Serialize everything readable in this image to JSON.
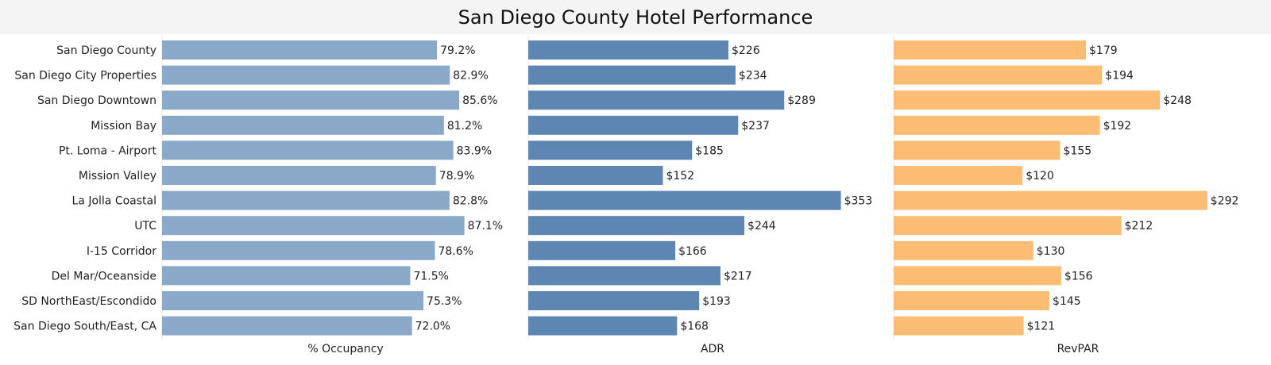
{
  "chart_data": {
    "type": "bar",
    "orientation": "horizontal",
    "title": "San Diego County Hotel Performance",
    "categories": [
      "San Diego County",
      "San Diego City Properties",
      "San Diego Downtown",
      "Mission Bay",
      "Pt. Loma - Airport",
      "Mission Valley",
      "La Jolla Coastal",
      "UTC",
      "I-15 Corridor",
      "Del Mar/Oceanside",
      "SD NorthEast/Escondido",
      "San Diego South/East, CA"
    ],
    "grid": false,
    "series": [
      {
        "name": "% Occupancy",
        "color": "#8aa8c7",
        "format": "percent",
        "values": [
          79.2,
          82.9,
          85.6,
          81.2,
          83.9,
          78.9,
          82.8,
          87.1,
          78.6,
          71.5,
          75.3,
          72.0
        ]
      },
      {
        "name": "ADR",
        "color": "#5d86b2",
        "format": "dollar",
        "values": [
          226,
          234,
          289,
          237,
          185,
          152,
          353,
          244,
          166,
          217,
          193,
          168
        ]
      },
      {
        "name": "RevPAR",
        "color": "#fbbd74",
        "format": "dollar",
        "values": [
          179,
          194,
          248,
          192,
          155,
          120,
          292,
          212,
          130,
          156,
          145,
          121
        ]
      }
    ]
  }
}
